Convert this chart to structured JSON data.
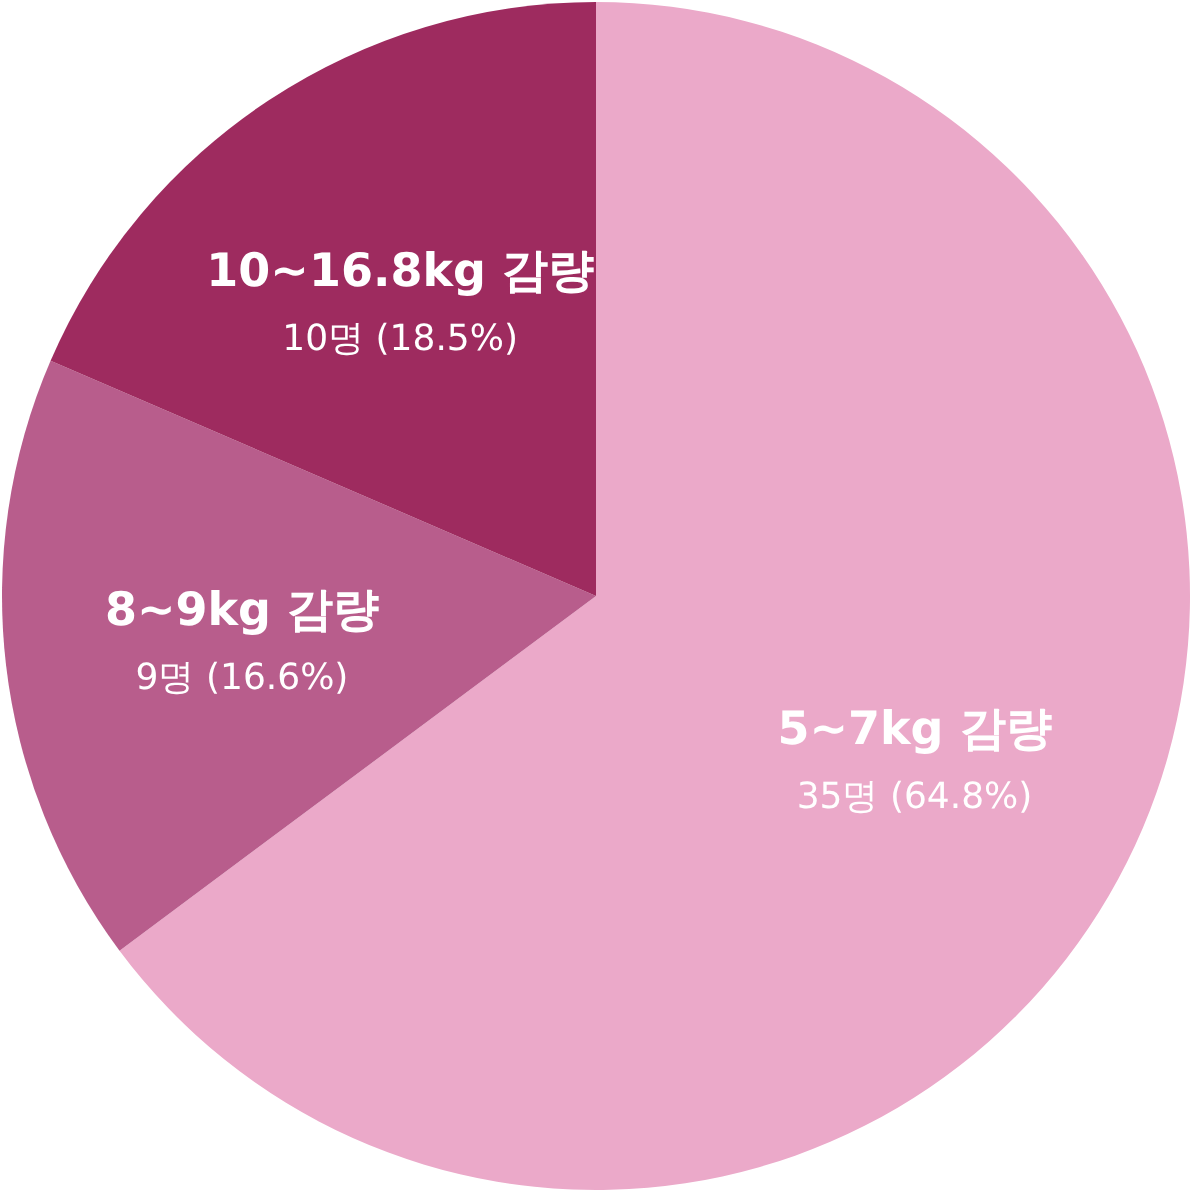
{
  "chart_data": {
    "type": "pie",
    "categories": [
      "5~7kg 감량",
      "8~9kg 감량",
      "10~16.8kg 감량"
    ],
    "values": [
      35,
      9,
      10
    ],
    "colors": [
      "#eba9c9",
      "#b85d8c",
      "#9e2b5f"
    ],
    "value_labels": [
      "35명 (64.8%)",
      "9명 (16.6%)",
      "10명 (18.5%)"
    ]
  }
}
